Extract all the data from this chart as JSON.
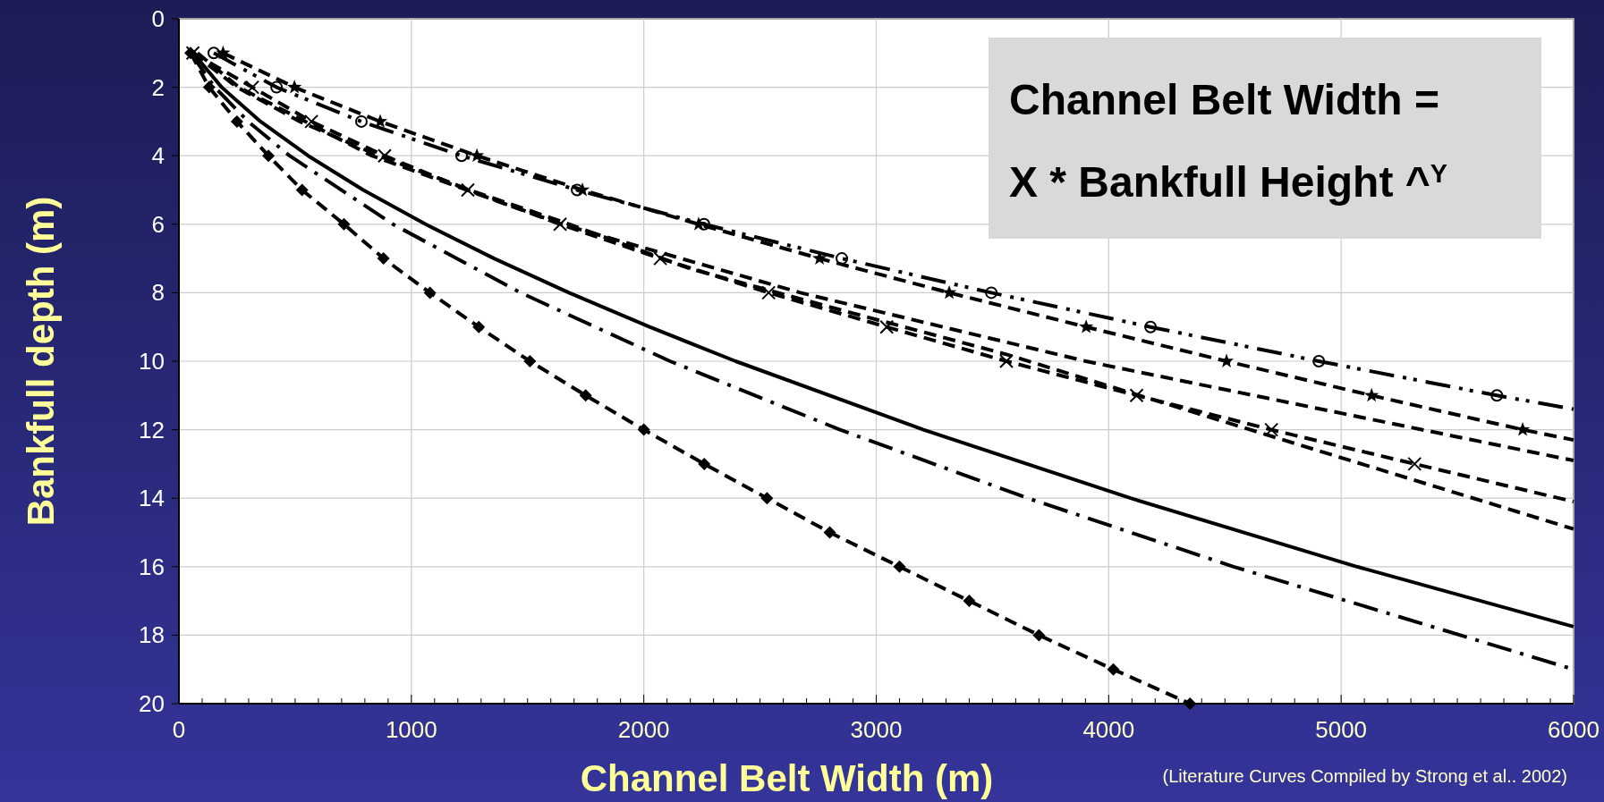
{
  "chart_data": {
    "type": "line",
    "xlabel": "Channel Belt Width (m)",
    "ylabel": "Bankfull depth (m)",
    "xlim": [
      0,
      6000
    ],
    "ylim": [
      20,
      0
    ],
    "xticks": [
      0,
      {
        "value": 100,
        "label": null
      },
      {
        "value": 200,
        "label": null
      },
      {
        "value": 300,
        "label": null
      },
      {
        "value": 400,
        "label": null
      },
      {
        "value": 500,
        "label": null
      },
      {
        "value": 600,
        "label": null
      },
      {
        "value": 700,
        "label": null
      },
      {
        "value": 800,
        "label": null
      },
      {
        "value": 900,
        "label": null
      },
      1000,
      {
        "value": 1100,
        "label": null
      },
      {
        "value": 1200,
        "label": null
      },
      {
        "value": 1300,
        "label": null
      },
      {
        "value": 1400,
        "label": null
      },
      {
        "value": 1500,
        "label": null
      },
      {
        "value": 1600,
        "label": null
      },
      {
        "value": 1700,
        "label": null
      },
      {
        "value": 1800,
        "label": null
      },
      {
        "value": 1900,
        "label": null
      },
      2000,
      {
        "value": 2100,
        "label": null
      },
      {
        "value": 2200,
        "label": null
      },
      {
        "value": 2300,
        "label": null
      },
      {
        "value": 2400,
        "label": null
      },
      {
        "value": 2500,
        "label": null
      },
      {
        "value": 2600,
        "label": null
      },
      {
        "value": 2700,
        "label": null
      },
      {
        "value": 2800,
        "label": null
      },
      {
        "value": 2900,
        "label": null
      },
      3000,
      {
        "value": 3100,
        "label": null
      },
      {
        "value": 3200,
        "label": null
      },
      {
        "value": 3300,
        "label": null
      },
      {
        "value": 3400,
        "label": null
      },
      {
        "value": 3500,
        "label": null
      },
      {
        "value": 3600,
        "label": null
      },
      {
        "value": 3700,
        "label": null
      },
      {
        "value": 3800,
        "label": null
      },
      {
        "value": 3900,
        "label": null
      },
      4000,
      {
        "value": 4100,
        "label": null
      },
      {
        "value": 4200,
        "label": null
      },
      {
        "value": 4300,
        "label": null
      },
      {
        "value": 4400,
        "label": null
      },
      {
        "value": 4500,
        "label": null
      },
      {
        "value": 4600,
        "label": null
      },
      {
        "value": 4700,
        "label": null
      },
      {
        "value": 4800,
        "label": null
      },
      {
        "value": 4900,
        "label": null
      },
      5000,
      {
        "value": 5100,
        "label": null
      },
      {
        "value": 5200,
        "label": null
      },
      {
        "value": 5300,
        "label": null
      },
      {
        "value": 5400,
        "label": null
      },
      {
        "value": 5500,
        "label": null
      },
      {
        "value": 5600,
        "label": null
      },
      {
        "value": 5700,
        "label": null
      },
      {
        "value": 5800,
        "label": null
      },
      {
        "value": 5900,
        "label": null
      },
      6000
    ],
    "yticks": [
      0,
      2,
      4,
      6,
      8,
      10,
      12,
      14,
      16,
      18,
      20
    ],
    "grid": true,
    "annotations": [
      "Channel Belt Width  =\nX * Bankfull Height ^$^{Y}$",
      "(Literature Curves Compiled by Strong et al.. 2002)"
    ],
    "series": [
      {
        "color": "#000000",
        "marker": "diamond",
        "line_style": "dashed",
        "x": [
          50,
          130,
          250,
          385,
          530,
          710,
          880,
          1080,
          1290,
          1510,
          1750,
          2000,
          2260,
          2530,
          2800,
          3100,
          3400,
          3700,
          4020,
          4350
        ],
        "values": [
          1,
          2,
          3,
          4,
          5,
          6,
          7,
          8,
          9,
          10,
          11,
          12,
          13,
          14,
          15,
          16,
          17,
          18,
          19,
          20
        ]
      },
      {
        "color": "#000000",
        "marker": "none",
        "line_style": "solid",
        "x": [
          61,
          184,
          351,
          556,
          793,
          1061,
          1356,
          1678,
          2025,
          2395,
          3203,
          4094,
          5068,
          6000
        ],
        "values": [
          1,
          2,
          3,
          4,
          5,
          6,
          7,
          8,
          9,
          10,
          12,
          14,
          16,
          17.75
        ]
      },
      {
        "color": "#000000",
        "marker": "none",
        "line_style": "dashdot",
        "x": [
          50,
          154,
          298,
          476,
          921,
          1470,
          2113,
          2844,
          3652,
          4537,
          6000
        ],
        "values": [
          1,
          2,
          3,
          4,
          6,
          8,
          10,
          12,
          14,
          16,
          19
        ]
      },
      {
        "color": "#000000",
        "marker": "cross",
        "line_style": "dashed",
        "x": [
          60,
          316,
          570,
          885,
          1243,
          1640,
          2071,
          2537,
          3045,
          3560,
          4120,
          4700,
          5316,
          6000
        ],
        "values": [
          1,
          2,
          3,
          4,
          5,
          6,
          7,
          8,
          9,
          10,
          11,
          12,
          13,
          14.1
        ]
      },
      {
        "color": "#000000",
        "marker": "none",
        "line_style": "dashed",
        "x": [
          80,
          258,
          830,
          1647,
          2674,
          3901,
          6000
        ],
        "values": [
          1,
          2,
          4,
          6,
          8,
          10,
          12.9
        ]
      },
      {
        "color": "#000000",
        "marker": "none",
        "line_style": "dashed",
        "x": [
          60,
          250,
          520,
          860,
          1250,
          1680,
          2200,
          2900,
          3560,
          4800,
          6000
        ],
        "values": [
          1,
          2,
          3,
          4,
          5,
          6,
          7.3,
          8.6,
          9.8,
          12.4,
          14.9
        ]
      },
      {
        "color": "#000000",
        "marker": "star",
        "line_style": "dashed",
        "x": [
          190,
          497,
          866,
          1282,
          1736,
          2236,
          2756,
          3314,
          3903,
          4507,
          5131,
          5781,
          6000
        ],
        "values": [
          1,
          2,
          3,
          4,
          5,
          6,
          7,
          8,
          9,
          10,
          11,
          12,
          12.3
        ]
      },
      {
        "color": "#000000",
        "marker": "circle",
        "line_style": "dashdotdot",
        "x": [
          150,
          420,
          785,
          1216,
          1713,
          2259,
          2852,
          3495,
          4180,
          4904,
          5670,
          6000
        ],
        "values": [
          1,
          2,
          3,
          4,
          5,
          6,
          7,
          8,
          9,
          10,
          11,
          11.4
        ]
      }
    ]
  }
}
